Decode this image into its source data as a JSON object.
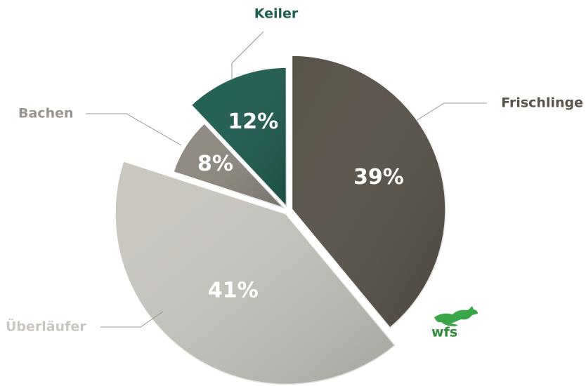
{
  "chart_data": {
    "type": "pie",
    "categories": [
      "Frischlinge",
      "Überläufer",
      "Bachen",
      "Keiler"
    ],
    "values": [
      39,
      41,
      8,
      12
    ],
    "value_labels": [
      "39%",
      "41%",
      "8%",
      "12%"
    ],
    "colors": [
      "#59534a",
      "#c9c7c0",
      "#8e8980",
      "#1f5d51"
    ],
    "label_colors": [
      "#59534a",
      "#c9c7c0",
      "#9a958c",
      "#1f5d51"
    ]
  },
  "logo": "wfs"
}
